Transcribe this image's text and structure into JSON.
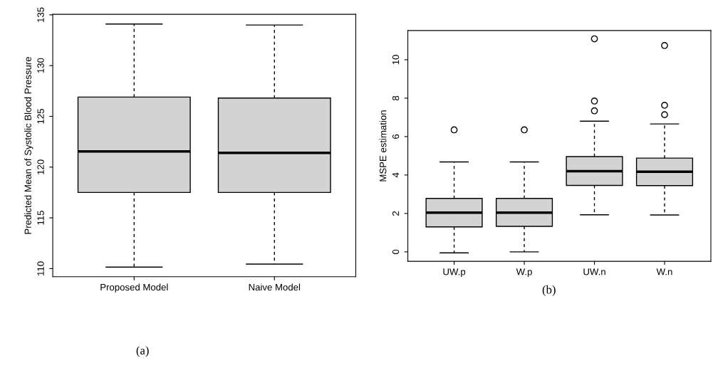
{
  "chart_data": [
    {
      "type": "box",
      "ylabel": "Predicted Mean of Systolic Blood Pressure",
      "categories": [
        "Proposed Model",
        "Naive Model"
      ],
      "color": "#d3d3d3",
      "ylim": [
        109.2,
        135.05
      ],
      "yticks": [
        110,
        115,
        120,
        125,
        130,
        135
      ],
      "grid": false,
      "annotations": [
        "(a)"
      ],
      "boxes": [
        {
          "low": 110.15,
          "q1": 117.5,
          "median": 121.55,
          "q3": 126.9,
          "high": 134.1
        },
        {
          "low": 110.45,
          "q1": 117.5,
          "median": 121.4,
          "q3": 126.8,
          "high": 134.0
        }
      ]
    },
    {
      "type": "box",
      "ylabel": "MSPE estimation",
      "categories": [
        "UW.p",
        "W.p",
        "UW.n",
        "W.n"
      ],
      "color": "#d3d3d3",
      "ylim": [
        -0.49,
        11.52
      ],
      "yticks": [
        0,
        2,
        4,
        6,
        8,
        10
      ],
      "grid": false,
      "annotations": [
        "(b)"
      ],
      "boxes": [
        {
          "low": -0.05,
          "q1": 1.3,
          "median": 2.04,
          "q3": 2.78,
          "high": 4.68,
          "outliers": [
            6.35
          ]
        },
        {
          "low": 0.0,
          "q1": 1.33,
          "median": 2.04,
          "q3": 2.78,
          "high": 4.68,
          "outliers": [
            6.35
          ]
        },
        {
          "low": 1.93,
          "q1": 3.46,
          "median": 4.2,
          "q3": 4.96,
          "high": 6.8,
          "outliers": [
            11.09,
            7.85,
            7.34
          ]
        },
        {
          "low": 1.92,
          "q1": 3.45,
          "median": 4.17,
          "q3": 4.88,
          "high": 6.66,
          "outliers": [
            10.74,
            7.63,
            7.14
          ]
        }
      ]
    }
  ]
}
